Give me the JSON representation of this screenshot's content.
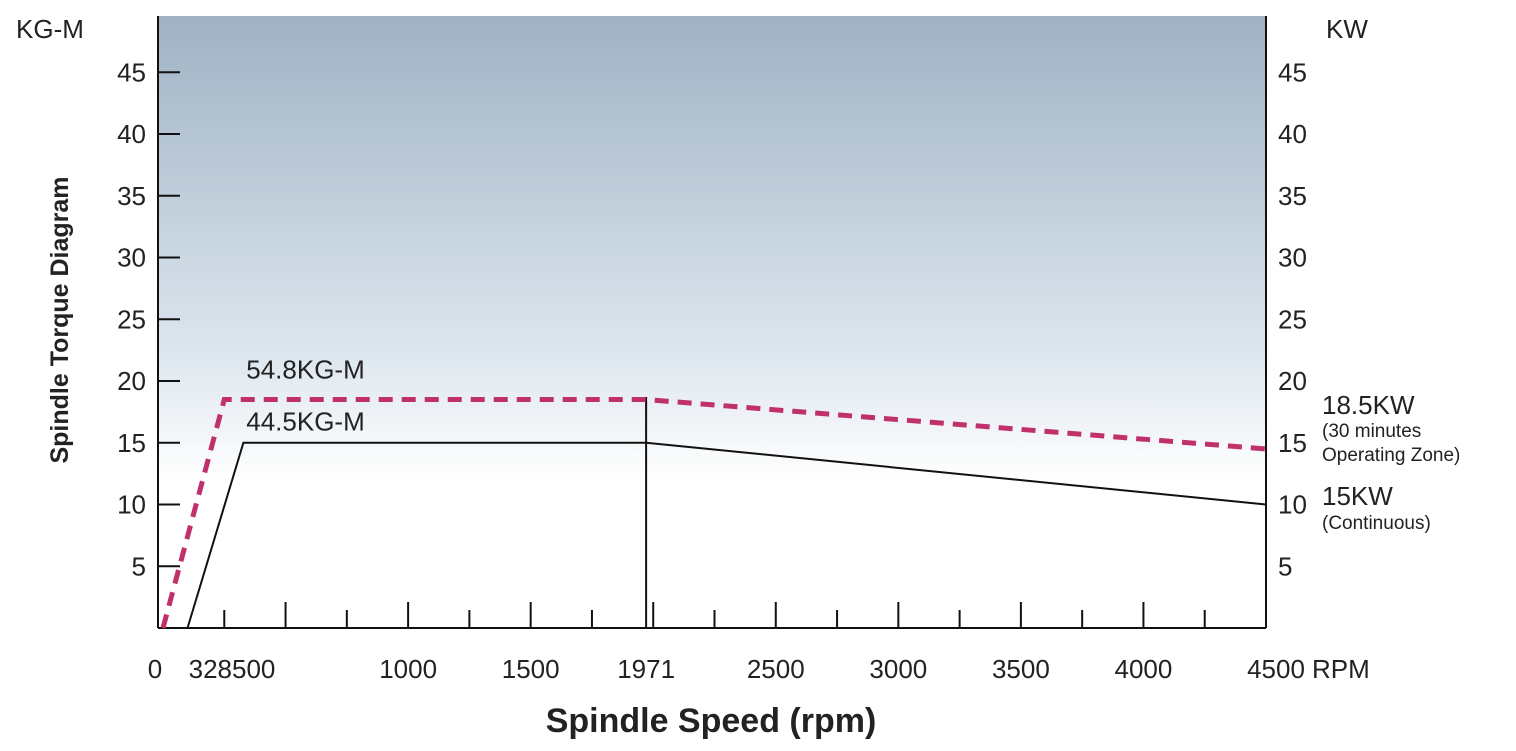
{
  "chart_data": {
    "type": "line",
    "xlabel": "Spindle Speed (rpm)",
    "ylabel": "Spindle Torque Diagram",
    "y_unit_left": "KG-M",
    "y_unit_right": "KW",
    "x_unit": "RPM",
    "xlim": [
      0,
      4500
    ],
    "ylim": [
      0,
      50
    ],
    "x_ticks": [
      {
        "value": 0,
        "label": "0"
      },
      {
        "value": 328,
        "label": "328"
      },
      {
        "value": 500,
        "label": "500"
      },
      {
        "value": 1000,
        "label": "1000"
      },
      {
        "value": 1500,
        "label": "1500"
      },
      {
        "value": 1971,
        "label": "1971"
      },
      {
        "value": 2500,
        "label": "2500"
      },
      {
        "value": 3000,
        "label": "3000"
      },
      {
        "value": 3500,
        "label": "3500"
      },
      {
        "value": 4000,
        "label": "4000"
      },
      {
        "value": 4500,
        "label": "4500"
      }
    ],
    "y_ticks": [
      5,
      10,
      15,
      20,
      25,
      30,
      35,
      40,
      45
    ],
    "right_y_ticks": [
      5,
      10,
      15,
      20,
      25,
      30,
      35,
      40,
      45
    ],
    "series": [
      {
        "style": "dashed",
        "color": "#c0306a",
        "x": [
          0,
          250,
          1971,
          4500
        ],
        "y": [
          0,
          18.5,
          18.5,
          14.5
        ]
      },
      {
        "style": "solid",
        "color": "#111111",
        "x": [
          100,
          328,
          1971,
          4500
        ],
        "y": [
          0,
          15,
          15,
          10
        ]
      }
    ],
    "annotations": [
      {
        "text": "54.8KG-M",
        "x": 560,
        "y": 20.2
      },
      {
        "text": "44.5KG-M",
        "x": 560,
        "y": 16.0
      }
    ],
    "right_labels": [
      {
        "lines": [
          "18.5KW",
          "(30 minutes",
          "Operating Zone)"
        ]
      },
      {
        "lines": [
          "15KW",
          "(Continuous)"
        ]
      }
    ],
    "vertical_marker": 1971,
    "colors": {
      "gradient_top": "#9fb2c4",
      "gradient_bottom": "#ffffff",
      "dashed": "#c0306a",
      "solid": "#111111"
    },
    "grid": false
  }
}
